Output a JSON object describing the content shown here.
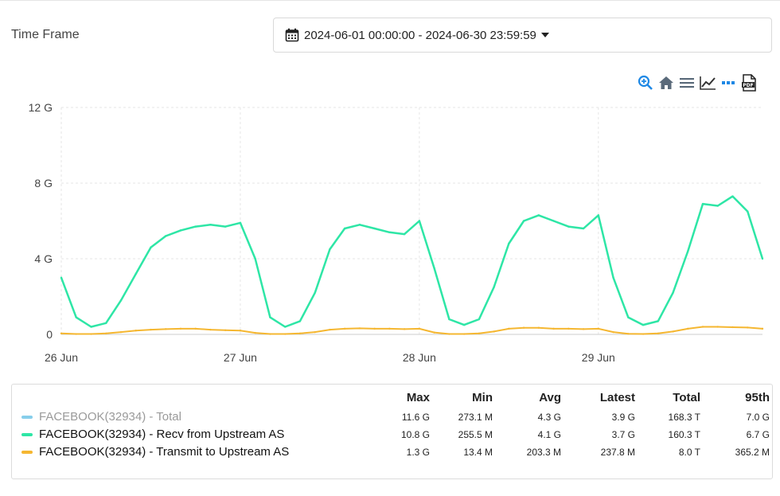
{
  "time_frame": {
    "label": "Time Frame",
    "value": "2024-06-01 00:00:00 - 2024-06-30 23:59:59"
  },
  "toolbar": [
    {
      "name": "zoom-in-icon",
      "color": "#1e88e5"
    },
    {
      "name": "home-icon",
      "color": "#5a6a7a"
    },
    {
      "name": "menu-icon",
      "color": "#5a6a7a"
    },
    {
      "name": "line-chart-icon",
      "color": "#333333"
    },
    {
      "name": "more-icon",
      "color": "#1e88e5"
    },
    {
      "name": "pdf-icon",
      "color": "#333333"
    }
  ],
  "chart_data": {
    "type": "line",
    "y_ticks": [
      "12 G",
      "8 G",
      "4 G",
      "0"
    ],
    "y_tick_values": [
      12,
      8,
      4,
      0
    ],
    "ylim": [
      0,
      12
    ],
    "x_ticks": [
      "26 Jun",
      "27 Jun",
      "28 Jun",
      "29 Jun"
    ],
    "x_tick_values": [
      "2024-06-26",
      "2024-06-27",
      "2024-06-28",
      "2024-06-29"
    ],
    "xlim": [
      "2024-06-26 00:00",
      "2024-06-29 22:00"
    ],
    "grid": true,
    "series": [
      {
        "name": "FACEBOOK(32934) - Total",
        "color": "#87ceeb",
        "visible": false,
        "x": [],
        "values": []
      },
      {
        "name": "FACEBOOK(32934) - Recv from Upstream AS",
        "color": "#2ee6a6",
        "x": [
          "2024-06-26 00:00",
          "2024-06-26 02:00",
          "2024-06-26 04:00",
          "2024-06-26 06:00",
          "2024-06-26 08:00",
          "2024-06-26 10:00",
          "2024-06-26 12:00",
          "2024-06-26 14:00",
          "2024-06-26 16:00",
          "2024-06-26 18:00",
          "2024-06-26 20:00",
          "2024-06-26 22:00",
          "2024-06-27 00:00",
          "2024-06-27 02:00",
          "2024-06-27 04:00",
          "2024-06-27 06:00",
          "2024-06-27 08:00",
          "2024-06-27 10:00",
          "2024-06-27 12:00",
          "2024-06-27 14:00",
          "2024-06-27 16:00",
          "2024-06-27 18:00",
          "2024-06-27 20:00",
          "2024-06-27 22:00",
          "2024-06-28 00:00",
          "2024-06-28 02:00",
          "2024-06-28 04:00",
          "2024-06-28 06:00",
          "2024-06-28 08:00",
          "2024-06-28 10:00",
          "2024-06-28 12:00",
          "2024-06-28 14:00",
          "2024-06-28 16:00",
          "2024-06-28 18:00",
          "2024-06-28 20:00",
          "2024-06-28 22:00",
          "2024-06-29 00:00",
          "2024-06-29 02:00",
          "2024-06-29 04:00",
          "2024-06-29 06:00",
          "2024-06-29 08:00",
          "2024-06-29 10:00",
          "2024-06-29 12:00",
          "2024-06-29 14:00",
          "2024-06-29 16:00",
          "2024-06-29 18:00",
          "2024-06-29 20:00",
          "2024-06-29 22:00"
        ],
        "values": [
          3.0,
          0.9,
          0.4,
          0.6,
          1.8,
          3.2,
          4.6,
          5.2,
          5.5,
          5.7,
          5.8,
          5.7,
          5.9,
          4.0,
          0.9,
          0.4,
          0.7,
          2.2,
          4.5,
          5.6,
          5.8,
          5.6,
          5.4,
          5.3,
          6.0,
          3.5,
          0.8,
          0.5,
          0.8,
          2.5,
          4.8,
          6.0,
          6.3,
          6.0,
          5.7,
          5.6,
          6.3,
          3.0,
          0.9,
          0.5,
          0.7,
          2.2,
          4.4,
          6.9,
          6.8,
          7.3,
          6.5,
          4.0
        ]
      },
      {
        "name": "FACEBOOK(32934) - Transmit to Upstream AS",
        "color": "#f5b731",
        "x": [
          "2024-06-26 00:00",
          "2024-06-26 02:00",
          "2024-06-26 04:00",
          "2024-06-26 06:00",
          "2024-06-26 08:00",
          "2024-06-26 10:00",
          "2024-06-26 12:00",
          "2024-06-26 14:00",
          "2024-06-26 16:00",
          "2024-06-26 18:00",
          "2024-06-26 20:00",
          "2024-06-26 22:00",
          "2024-06-27 00:00",
          "2024-06-27 02:00",
          "2024-06-27 04:00",
          "2024-06-27 06:00",
          "2024-06-27 08:00",
          "2024-06-27 10:00",
          "2024-06-27 12:00",
          "2024-06-27 14:00",
          "2024-06-27 16:00",
          "2024-06-27 18:00",
          "2024-06-27 20:00",
          "2024-06-27 22:00",
          "2024-06-28 00:00",
          "2024-06-28 02:00",
          "2024-06-28 04:00",
          "2024-06-28 06:00",
          "2024-06-28 08:00",
          "2024-06-28 10:00",
          "2024-06-28 12:00",
          "2024-06-28 14:00",
          "2024-06-28 16:00",
          "2024-06-28 18:00",
          "2024-06-28 20:00",
          "2024-06-28 22:00",
          "2024-06-29 00:00",
          "2024-06-29 02:00",
          "2024-06-29 04:00",
          "2024-06-29 06:00",
          "2024-06-29 08:00",
          "2024-06-29 10:00",
          "2024-06-29 12:00",
          "2024-06-29 14:00",
          "2024-06-29 16:00",
          "2024-06-29 18:00",
          "2024-06-29 20:00",
          "2024-06-29 22:00"
        ],
        "values": [
          0.05,
          0.02,
          0.02,
          0.05,
          0.12,
          0.2,
          0.25,
          0.28,
          0.3,
          0.3,
          0.25,
          0.22,
          0.2,
          0.08,
          0.02,
          0.02,
          0.05,
          0.12,
          0.25,
          0.3,
          0.32,
          0.3,
          0.3,
          0.28,
          0.3,
          0.1,
          0.02,
          0.02,
          0.05,
          0.15,
          0.3,
          0.35,
          0.35,
          0.3,
          0.3,
          0.28,
          0.3,
          0.12,
          0.03,
          0.02,
          0.05,
          0.15,
          0.3,
          0.4,
          0.4,
          0.38,
          0.36,
          0.3
        ]
      }
    ]
  },
  "stats": {
    "columns": [
      "Max",
      "Min",
      "Avg",
      "Latest",
      "Total",
      "95th"
    ],
    "rows": [
      {
        "name": "FACEBOOK(32934) - Total",
        "color": "#87ceeb",
        "muted": true,
        "values": [
          "11.6 G",
          "273.1 M",
          "4.3 G",
          "3.9 G",
          "168.3 T",
          "7.0 G"
        ]
      },
      {
        "name": "FACEBOOK(32934) - Recv from Upstream AS",
        "color": "#2ee6a6",
        "muted": false,
        "values": [
          "10.8 G",
          "255.5 M",
          "4.1 G",
          "3.7 G",
          "160.3 T",
          "6.7 G"
        ]
      },
      {
        "name": "FACEBOOK(32934) - Transmit to Upstream AS",
        "color": "#f5b731",
        "muted": false,
        "values": [
          "1.3 G",
          "13.4 M",
          "203.3 M",
          "237.8 M",
          "8.0 T",
          "365.2 M"
        ]
      }
    ]
  }
}
